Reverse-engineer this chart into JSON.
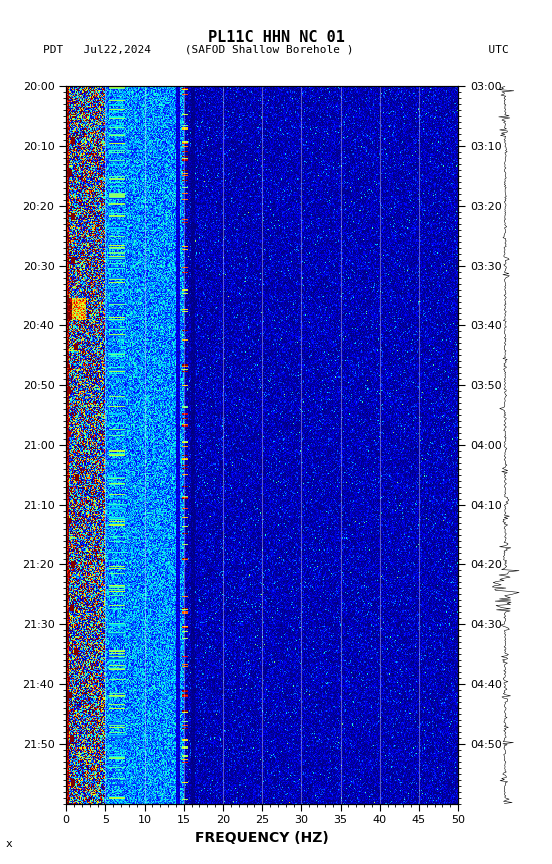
{
  "title_line1": "PL11C HHN NC 01",
  "title_line2": "PDT   Jul22,2024     (SAFOD Shallow Borehole )                    UTC",
  "xlabel": "FREQUENCY (HZ)",
  "freq_min": 0,
  "freq_max": 50,
  "time_labels_left": [
    "20:00",
    "20:10",
    "20:20",
    "20:30",
    "20:40",
    "20:50",
    "21:00",
    "21:10",
    "21:20",
    "21:30",
    "21:40",
    "21:50"
  ],
  "time_labels_right": [
    "03:00",
    "03:10",
    "03:20",
    "03:30",
    "03:40",
    "03:50",
    "04:00",
    "04:10",
    "04:20",
    "04:30",
    "04:40",
    "04:50"
  ],
  "freq_ticks": [
    0,
    5,
    10,
    15,
    20,
    25,
    30,
    35,
    40,
    45,
    50
  ],
  "freq_tick_labels": [
    "0",
    "5",
    "10",
    "15",
    "20",
    "25",
    "30",
    "35",
    "40",
    "45",
    "50"
  ],
  "background_color": "#ffffff",
  "spectrogram_bg": "#00008B",
  "colormap": "jet",
  "n_time": 660,
  "n_freq": 500,
  "seed": 42
}
